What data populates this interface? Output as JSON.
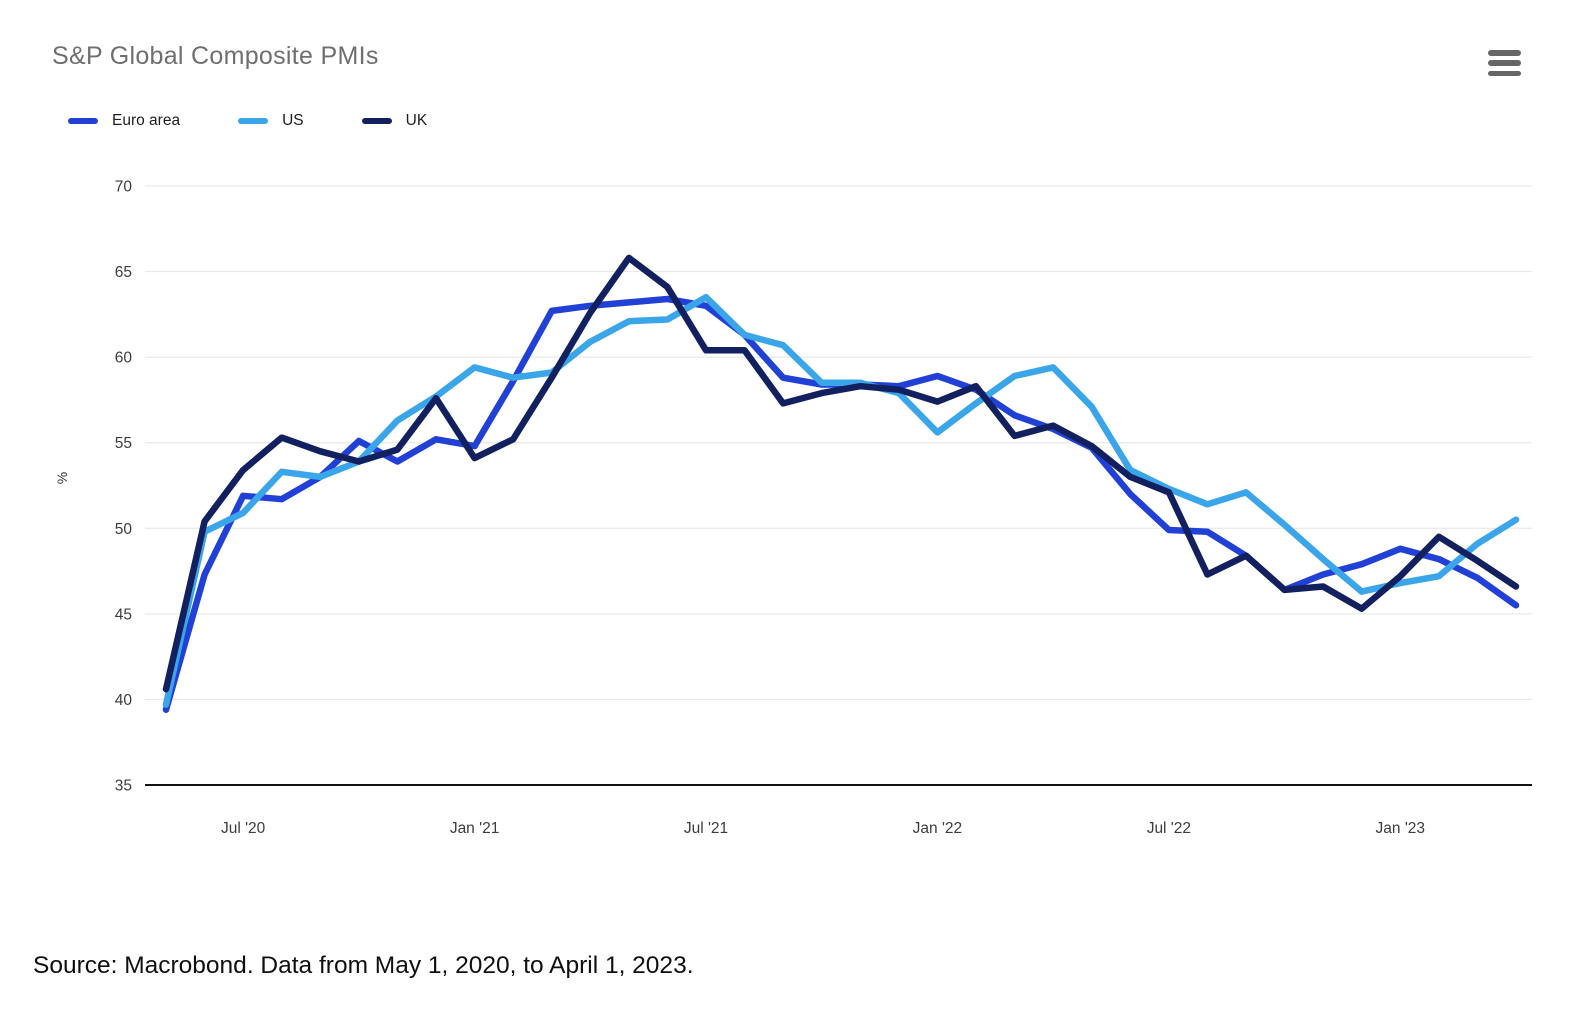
{
  "header": {
    "title": "S&P Global Composite PMIs"
  },
  "chart_data": {
    "type": "line",
    "title": "S&P Global Composite PMIs",
    "ylabel": "%",
    "unit_label": "%",
    "ylim": [
      35,
      70
    ],
    "y_ticks": [
      35,
      40,
      45,
      50,
      55,
      60,
      65,
      70
    ],
    "grid": "horizontal",
    "legend_position": "top-left",
    "x_tick_labels": [
      "Jul '20",
      "Jan '21",
      "Jul '21",
      "Jan '22",
      "Jul '22",
      "Jan '23"
    ],
    "x_tick_month_indices": [
      2,
      8,
      14,
      20,
      26,
      32
    ],
    "x": [
      "May '20",
      "Jun '20",
      "Jul '20",
      "Aug '20",
      "Sep '20",
      "Oct '20",
      "Nov '20",
      "Dec '20",
      "Jan '21",
      "Feb '21",
      "Mar '21",
      "Apr '21",
      "May '21",
      "Jun '21",
      "Jul '21",
      "Aug '21",
      "Sep '21",
      "Oct '21",
      "Nov '21",
      "Dec '21",
      "Jan '22",
      "Feb '22",
      "Mar '22",
      "Apr '22",
      "May '22",
      "Jun '22",
      "Jul '22",
      "Aug '22",
      "Sep '22",
      "Oct '22",
      "Nov '22",
      "Dec '22",
      "Jan '23",
      "Feb '23",
      "Mar '23",
      "Apr '23"
    ],
    "series": [
      {
        "name": "Euro area",
        "color": "#2141d6",
        "values": [
          39.4,
          47.3,
          51.9,
          51.7,
          53.0,
          55.1,
          53.9,
          55.2,
          54.8,
          58.6,
          62.7,
          63.0,
          63.2,
          63.4,
          63.0,
          61.3,
          58.8,
          58.4,
          58.4,
          58.3,
          58.9,
          58.1,
          56.6,
          55.8,
          54.7,
          52.0,
          49.9,
          49.8,
          48.4,
          46.4,
          47.3,
          47.9,
          48.8,
          48.2,
          47.1,
          45.5
        ]
      },
      {
        "name": "US",
        "color": "#3aa5e9",
        "values": [
          39.7,
          49.8,
          50.9,
          53.3,
          53.0,
          53.9,
          56.3,
          57.7,
          59.4,
          58.8,
          59.1,
          60.9,
          62.1,
          62.2,
          63.5,
          61.3,
          60.7,
          58.5,
          58.5,
          57.9,
          55.6,
          57.3,
          58.9,
          59.4,
          57.1,
          53.4,
          52.3,
          51.4,
          52.1,
          50.2,
          48.2,
          46.3,
          46.8,
          47.2,
          49.1,
          50.5
        ]
      },
      {
        "name": "UK",
        "color": "#12205f",
        "values": [
          40.6,
          50.4,
          53.4,
          55.3,
          54.5,
          53.9,
          54.6,
          57.6,
          54.1,
          55.2,
          58.8,
          62.6,
          65.8,
          64.1,
          60.4,
          60.4,
          57.3,
          57.9,
          58.3,
          58.1,
          57.4,
          58.3,
          55.4,
          56.0,
          54.8,
          53.0,
          52.1,
          47.3,
          48.4,
          46.4,
          46.6,
          45.3,
          47.2,
          49.5,
          48.1,
          46.6
        ]
      }
    ]
  },
  "footer": {
    "source_text": "Source: Macrobond. Data from May 1, 2020, to April 1, 2023."
  }
}
